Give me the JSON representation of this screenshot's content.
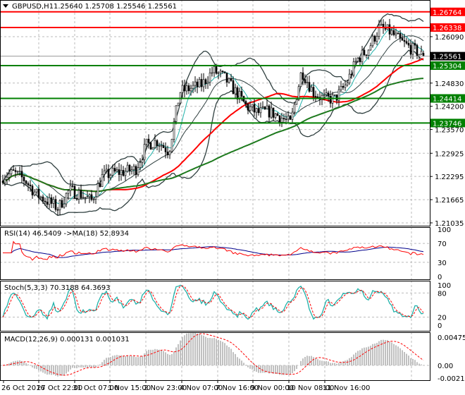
{
  "header": {
    "symbol": "GBPUSD,H1",
    "ohlc": "1.25640 1.25708 1.25546 1.25561"
  },
  "colors": {
    "background": "#ffffff",
    "bull_candle": "#ffffff",
    "bear_candle": "#000000",
    "resistance": "#ff0000",
    "support": "#008000",
    "current_price_bg": "#000000",
    "ma_slow": "#1e7a1e",
    "ma_mid": "#ff0000",
    "bands": "#2f3f3f",
    "rsi": "#ff0000",
    "rsi_ma": "#00008b",
    "stoch_main": "#20b2aa",
    "stoch_signal": "#ff0000",
    "macd_hist": "#c0c0c0",
    "macd_signal": "#ff0000"
  },
  "chart_data": [
    {
      "type": "candlestick",
      "title": "GBPUSD,H1",
      "price_axis_ticks": [
        "1.26090",
        "1.24830",
        "1.24200",
        "1.23570",
        "1.22925",
        "1.22295",
        "1.21665",
        "1.21035"
      ],
      "ylim": [
        1.2085,
        1.2715
      ],
      "grid": true,
      "current_price": "1.25561",
      "levels": [
        {
          "value": "1.26764",
          "kind": "resistance"
        },
        {
          "value": "1.26338",
          "kind": "resistance"
        },
        {
          "value": "1.25304",
          "kind": "support"
        },
        {
          "value": "1.24414",
          "kind": "support"
        },
        {
          "value": "1.23746",
          "kind": "support"
        }
      ],
      "close_path": [
        1.223,
        1.2239,
        1.222,
        1.2182,
        1.2163,
        1.2144,
        1.2192,
        1.2182,
        1.2163,
        1.223,
        1.2239,
        1.2243,
        1.2249,
        1.2316,
        1.2326,
        1.2297,
        1.246,
        1.2469,
        1.2479,
        1.2517,
        1.2498,
        1.246,
        1.2421,
        1.2402,
        1.2406,
        1.2393,
        1.2373,
        1.2517,
        1.246,
        1.244,
        1.244,
        1.2479,
        1.2546,
        1.2575,
        1.2632,
        1.2622,
        1.2594,
        1.2575,
        1.2556
      ],
      "indicators": [
        "Bollinger Bands",
        "Moving Averages"
      ]
    },
    {
      "type": "line",
      "title": "RSI(14) 46.5409  ->MA(18) 52.8934",
      "ticks": [
        "100",
        "70",
        "30",
        "0"
      ],
      "ylim": [
        0,
        100
      ],
      "series": [
        {
          "name": "RSI(14)",
          "last": 46.5409
        },
        {
          "name": "MA(18)",
          "last": 52.8934
        }
      ]
    },
    {
      "type": "line",
      "title": "Stoch(5,3,3) 70.3188 64.3693",
      "ticks": [
        "100",
        "80",
        "20",
        "0"
      ],
      "ylim": [
        0,
        100
      ],
      "series": [
        {
          "name": "main",
          "last": 70.3188
        },
        {
          "name": "signal",
          "last": 64.3693
        }
      ]
    },
    {
      "type": "bar",
      "title": "MACD(12,26,9) 0.000131 0.001031",
      "ticks": [
        "0.004755",
        "0.00",
        "-0.002153"
      ],
      "ylim": [
        -0.002153,
        0.004755
      ],
      "series": [
        {
          "name": "MACD",
          "last": 0.000131
        },
        {
          "name": "signal",
          "last": 0.001031
        }
      ]
    }
  ],
  "time_axis": [
    "26 Oct 2016",
    "27 Oct 22:00",
    "31 Oct 07:00",
    "1 Nov 15:00",
    "2 Nov 23:00",
    "4 Nov 07:00",
    "7 Nov 16:00",
    "9 Nov 00:00",
    "10 Nov 08:00",
    "11 Nov 16:00"
  ]
}
